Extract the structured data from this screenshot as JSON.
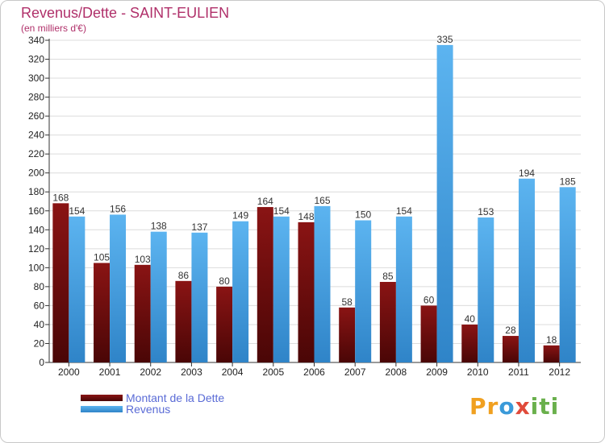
{
  "header": {
    "title": "Revenus/Dette - SAINT-EULIEN",
    "subtitle": "(en milliers d'€)"
  },
  "legend": [
    {
      "name": "Montant de la Dette",
      "color": "#7a1010"
    },
    {
      "name": "Revenus",
      "color": "#4aa3e8"
    }
  ],
  "logo": {
    "text_parts": [
      "Pr",
      "o",
      "x",
      "iti"
    ]
  },
  "chart_data": {
    "type": "bar",
    "title": "Revenus/Dette - SAINT-EULIEN",
    "ylabel": "(en milliers d'€)",
    "xlabel": "",
    "categories": [
      "2000",
      "2001",
      "2002",
      "2003",
      "2004",
      "2005",
      "2006",
      "2007",
      "2008",
      "2009",
      "2010",
      "2011",
      "2012"
    ],
    "series": [
      {
        "name": "Montant de la Dette",
        "color": "#7a1010",
        "values": [
          168,
          105,
          103,
          86,
          80,
          164,
          148,
          58,
          85,
          60,
          40,
          28,
          18
        ]
      },
      {
        "name": "Revenus",
        "color": "#4aa3e8",
        "values": [
          154,
          156,
          138,
          137,
          149,
          154,
          165,
          150,
          154,
          335,
          153,
          194,
          185
        ]
      }
    ],
    "ylim": [
      0,
      340
    ],
    "yticks": [
      0,
      20,
      40,
      60,
      80,
      100,
      120,
      140,
      160,
      180,
      200,
      220,
      240,
      260,
      280,
      300,
      320,
      340
    ],
    "grid": true,
    "legend_position": "bottom-left"
  }
}
